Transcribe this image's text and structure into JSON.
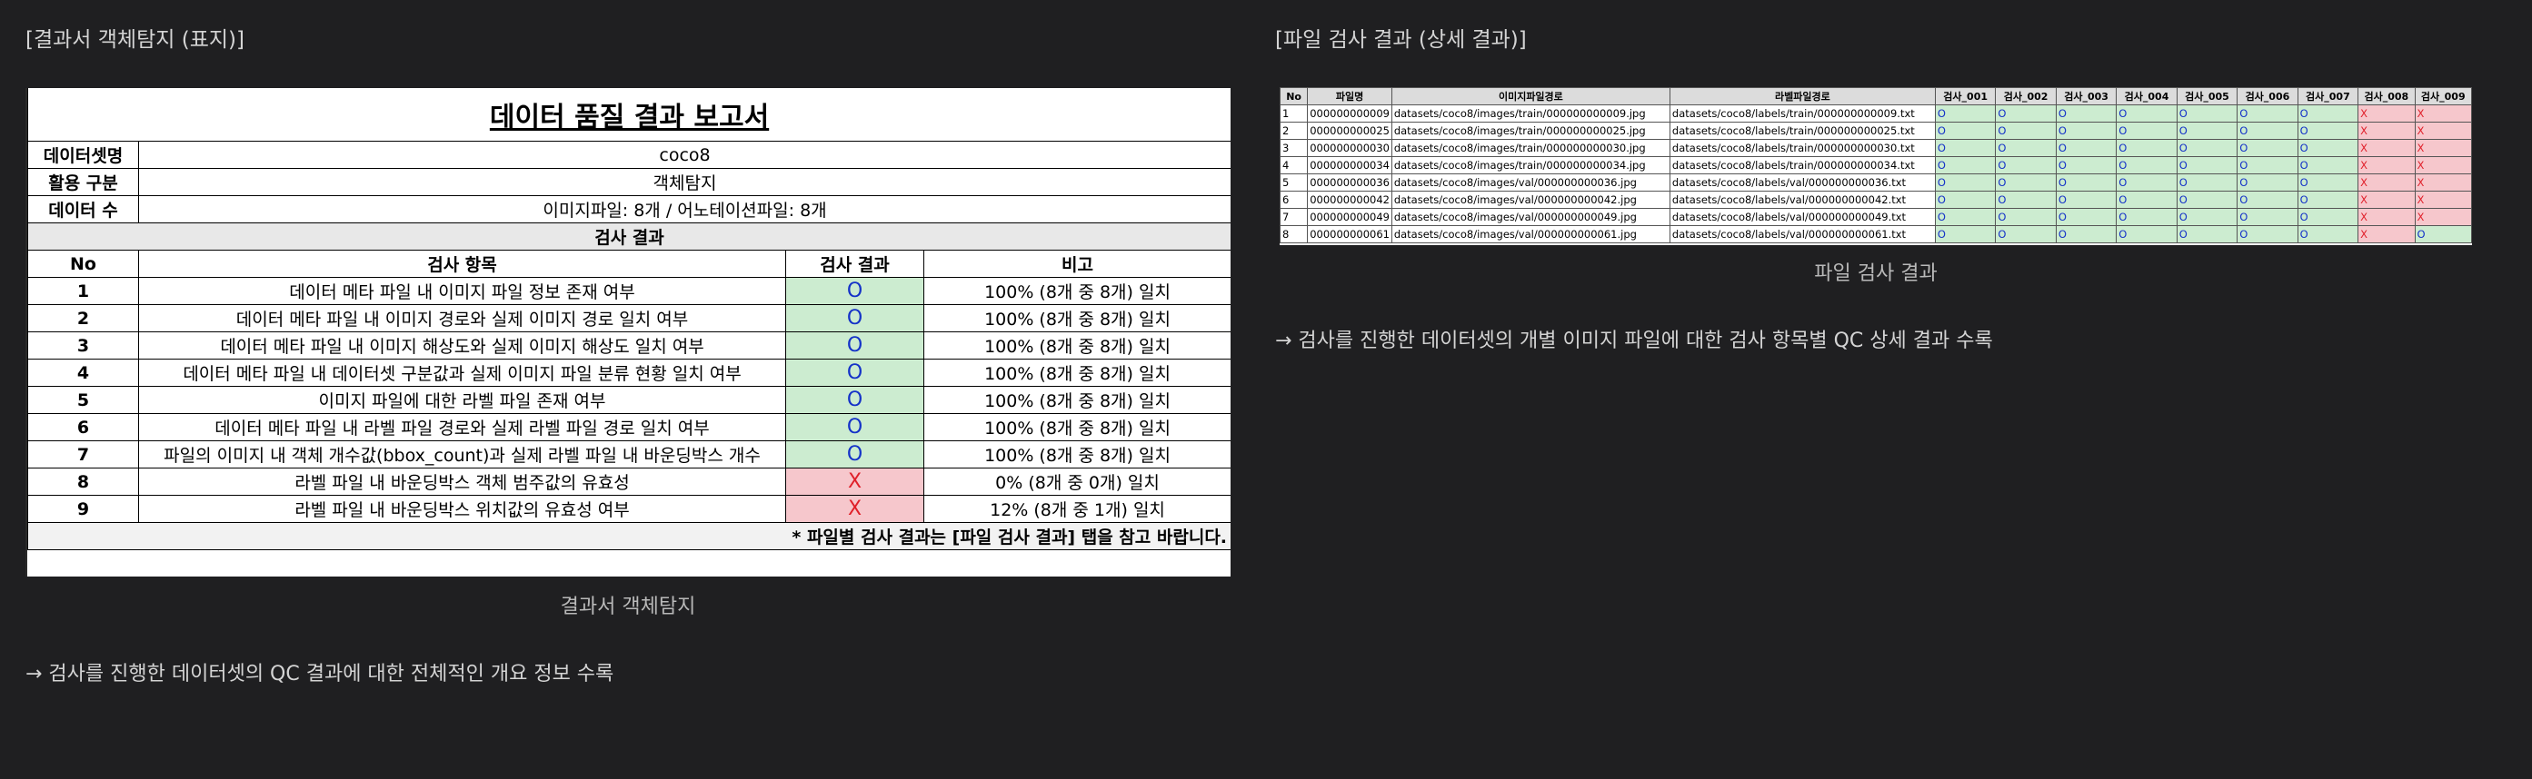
{
  "left_section": {
    "header": "[결과서 객체탐지 (표지)]",
    "caption": "결과서 객체탐지",
    "description": "→ 검사를 진행한 데이터셋의 QC 결과에 대한 전체적인 개요 정보 수록"
  },
  "right_section": {
    "header": "[파일 검사 결과 (상세 결과)]",
    "caption": "파일 검사 결과",
    "description": "→ 검사를 진행한 데이터셋의 개별 이미지 파일에 대한 검사 항목별 QC 상세 결과 수록"
  },
  "report": {
    "title": "데이터 품질 결과 보고서",
    "dataset_label": "데이터셋명",
    "dataset_value": "coco8",
    "usage_label": "활용 구분",
    "usage_value": "객체탐지",
    "count_label": "데이터 수",
    "count_value": "이미지파일: 8개 / 어노테이션파일: 8개",
    "section_title": "검사 결과",
    "col_no": "No",
    "col_item": "검사 항목",
    "col_result": "검사 결과",
    "col_note": "비고",
    "rows": [
      {
        "no": "1",
        "item": "데이터 메타 파일 내 이미지 파일 정보 존재 여부",
        "result": "O",
        "note": "100% (8개 중 8개) 일치"
      },
      {
        "no": "2",
        "item": "데이터 메타 파일 내 이미지 경로와 실제 이미지 경로 일치 여부",
        "result": "O",
        "note": "100% (8개 중 8개) 일치"
      },
      {
        "no": "3",
        "item": "데이터 메타 파일 내 이미지 해상도와 실제 이미지 해상도 일치 여부",
        "result": "O",
        "note": "100% (8개 중 8개) 일치"
      },
      {
        "no": "4",
        "item": "데이터 메타 파일 내 데이터셋 구분값과 실제 이미지 파일 분류 현황 일치 여부",
        "result": "O",
        "note": "100% (8개 중 8개) 일치"
      },
      {
        "no": "5",
        "item": "이미지 파일에 대한 라벨 파일 존재 여부",
        "result": "O",
        "note": "100% (8개 중 8개) 일치"
      },
      {
        "no": "6",
        "item": "데이터 메타 파일 내 라벨 파일 경로와 실제 라벨 파일 경로 일치 여부",
        "result": "O",
        "note": "100% (8개 중 8개) 일치"
      },
      {
        "no": "7",
        "item": "파일의 이미지 내 객체 개수값(bbox_count)과 실제 라벨 파일 내 바운딩박스 개수",
        "result": "O",
        "note": "100% (8개 중 8개) 일치"
      },
      {
        "no": "8",
        "item": "라벨 파일 내 바운딩박스 객체 범주값의 유효성",
        "result": "X",
        "note": "0% (8개 중 0개) 일치"
      },
      {
        "no": "9",
        "item": "라벨 파일 내 바운딩박스 위치값의 유효성 여부",
        "result": "X",
        "note": "12% (8개 중 1개) 일치"
      }
    ],
    "footer_note": "* 파일별 검사 결과는 [파일 검사 결과] 탭을 참고 바랍니다."
  },
  "detail": {
    "headers": [
      "No",
      "파일명",
      "이미지파일경로",
      "라벨파일경로",
      "검사_001",
      "검사_002",
      "검사_003",
      "검사_004",
      "검사_005",
      "검사_006",
      "검사_007",
      "검사_008",
      "검사_009"
    ],
    "rows": [
      [
        "1",
        "000000000009",
        "datasets/coco8/images/train/000000000009.jpg",
        "datasets/coco8/labels/train/000000000009.txt",
        "O",
        "O",
        "O",
        "O",
        "O",
        "O",
        "O",
        "X",
        "X"
      ],
      [
        "2",
        "000000000025",
        "datasets/coco8/images/train/000000000025.jpg",
        "datasets/coco8/labels/train/000000000025.txt",
        "O",
        "O",
        "O",
        "O",
        "O",
        "O",
        "O",
        "X",
        "X"
      ],
      [
        "3",
        "000000000030",
        "datasets/coco8/images/train/000000000030.jpg",
        "datasets/coco8/labels/train/000000000030.txt",
        "O",
        "O",
        "O",
        "O",
        "O",
        "O",
        "O",
        "X",
        "X"
      ],
      [
        "4",
        "000000000034",
        "datasets/coco8/images/train/000000000034.jpg",
        "datasets/coco8/labels/train/000000000034.txt",
        "O",
        "O",
        "O",
        "O",
        "O",
        "O",
        "O",
        "X",
        "X"
      ],
      [
        "5",
        "000000000036",
        "datasets/coco8/images/val/000000000036.jpg",
        "datasets/coco8/labels/val/000000000036.txt",
        "O",
        "O",
        "O",
        "O",
        "O",
        "O",
        "O",
        "X",
        "X"
      ],
      [
        "6",
        "000000000042",
        "datasets/coco8/images/val/000000000042.jpg",
        "datasets/coco8/labels/val/000000000042.txt",
        "O",
        "O",
        "O",
        "O",
        "O",
        "O",
        "O",
        "X",
        "X"
      ],
      [
        "7",
        "000000000049",
        "datasets/coco8/images/val/000000000049.jpg",
        "datasets/coco8/labels/val/000000000049.txt",
        "O",
        "O",
        "O",
        "O",
        "O",
        "O",
        "O",
        "X",
        "X"
      ],
      [
        "8",
        "000000000061",
        "datasets/coco8/images/val/000000000061.jpg",
        "datasets/coco8/labels/val/000000000061.txt",
        "O",
        "O",
        "O",
        "O",
        "O",
        "O",
        "O",
        "X",
        "O"
      ]
    ]
  },
  "colors": {
    "background": "#1f1f21",
    "pass_fill": "#ccecd0",
    "pass_text": "#1432c8",
    "fail_fill": "#f6c7cc",
    "fail_text": "#e0202a"
  }
}
